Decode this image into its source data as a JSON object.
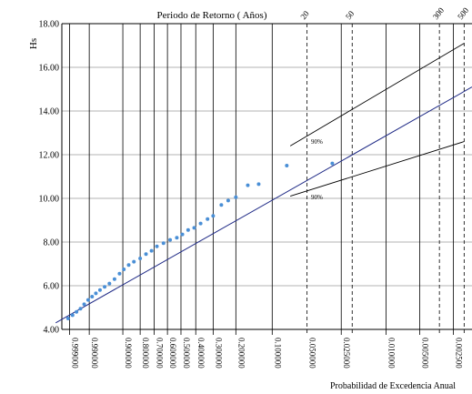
{
  "chart_data": {
    "type": "scatter",
    "title": "Periodo de Retorno ( Años)",
    "xlabel": "Probabilidad de Excedencia Anual",
    "ylabel": "Hs",
    "ylim": [
      4.0,
      18.0
    ],
    "y_ticks": [
      "4.00",
      "6.00",
      "8.00",
      "10.00",
      "12.00",
      "14.00",
      "16.00",
      "18.00"
    ],
    "x_ticks": [
      {
        "p": 0.999,
        "label": "0.999000",
        "dashed": false
      },
      {
        "p": 0.99,
        "label": "0.990000",
        "dashed": false
      },
      {
        "p": 0.9,
        "label": "0.900000",
        "dashed": false
      },
      {
        "p": 0.8,
        "label": "0.800000",
        "dashed": false
      },
      {
        "p": 0.7,
        "label": "0.700000",
        "dashed": false
      },
      {
        "p": 0.6,
        "label": "0.600000",
        "dashed": false
      },
      {
        "p": 0.5,
        "label": "0.500000",
        "dashed": false
      },
      {
        "p": 0.4,
        "label": "0.400000",
        "dashed": false
      },
      {
        "p": 0.3,
        "label": "0.300000",
        "dashed": false
      },
      {
        "p": 0.2,
        "label": "0.200000",
        "dashed": false
      },
      {
        "p": 0.1,
        "label": "0.100000",
        "dashed": false
      },
      {
        "p": 0.05,
        "label": "0.050000",
        "dashed": true
      },
      {
        "p": 0.025,
        "label": "0.025000",
        "dashed": false
      },
      {
        "p": 0.02,
        "label": "",
        "dashed": true
      },
      {
        "p": 0.01,
        "label": "0.010000",
        "dashed": false
      },
      {
        "p": 0.005,
        "label": "0.005000",
        "dashed": false
      },
      {
        "p": 0.00333,
        "label": "",
        "dashed": true
      },
      {
        "p": 0.0025,
        "label": "0.002500",
        "dashed": false
      },
      {
        "p": 0.002,
        "label": "",
        "dashed": true
      }
    ],
    "return_periods": [
      {
        "p": 0.05,
        "label": "20"
      },
      {
        "p": 0.02,
        "label": "50"
      },
      {
        "p": 0.00333,
        "label": "300"
      },
      {
        "p": 0.002,
        "label": "500"
      }
    ],
    "fit_line": {
      "from": {
        "p": 0.9999,
        "hs": 4.3
      },
      "to": {
        "p": 0.0017,
        "hs": 15.1
      }
    },
    "ci_upper": {
      "label": "90%",
      "from": {
        "p": 0.07,
        "hs": 12.4
      },
      "to": {
        "p": 0.002,
        "hs": 17.1
      }
    },
    "ci_lower": {
      "label": "90%",
      "from": {
        "p": 0.07,
        "hs": 10.1
      },
      "to": {
        "p": 0.002,
        "hs": 12.6
      }
    },
    "points": [
      {
        "p": 0.9992,
        "hs": 4.5
      },
      {
        "p": 0.9985,
        "hs": 4.65
      },
      {
        "p": 0.9975,
        "hs": 4.8
      },
      {
        "p": 0.996,
        "hs": 4.95
      },
      {
        "p": 0.994,
        "hs": 5.15
      },
      {
        "p": 0.991,
        "hs": 5.35
      },
      {
        "p": 0.987,
        "hs": 5.5
      },
      {
        "p": 0.982,
        "hs": 5.65
      },
      {
        "p": 0.975,
        "hs": 5.8
      },
      {
        "p": 0.965,
        "hs": 5.95
      },
      {
        "p": 0.952,
        "hs": 6.1
      },
      {
        "p": 0.935,
        "hs": 6.3
      },
      {
        "p": 0.915,
        "hs": 6.55
      },
      {
        "p": 0.895,
        "hs": 6.75
      },
      {
        "p": 0.87,
        "hs": 6.95
      },
      {
        "p": 0.84,
        "hs": 7.1
      },
      {
        "p": 0.8,
        "hs": 7.25
      },
      {
        "p": 0.76,
        "hs": 7.45
      },
      {
        "p": 0.72,
        "hs": 7.6
      },
      {
        "p": 0.68,
        "hs": 7.8
      },
      {
        "p": 0.63,
        "hs": 7.95
      },
      {
        "p": 0.58,
        "hs": 8.1
      },
      {
        "p": 0.53,
        "hs": 8.2
      },
      {
        "p": 0.49,
        "hs": 8.35
      },
      {
        "p": 0.45,
        "hs": 8.55
      },
      {
        "p": 0.41,
        "hs": 8.65
      },
      {
        "p": 0.37,
        "hs": 8.85
      },
      {
        "p": 0.33,
        "hs": 9.05
      },
      {
        "p": 0.3,
        "hs": 9.2
      },
      {
        "p": 0.26,
        "hs": 9.7
      },
      {
        "p": 0.23,
        "hs": 9.9
      },
      {
        "p": 0.2,
        "hs": 10.05
      },
      {
        "p": 0.16,
        "hs": 10.6
      },
      {
        "p": 0.13,
        "hs": 10.65
      },
      {
        "p": 0.075,
        "hs": 11.5
      },
      {
        "p": 0.03,
        "hs": 11.6
      }
    ],
    "colors": {
      "points": "#4a8fd6",
      "fit": "#1f2a86",
      "grid": "#000000",
      "ci": "#000000"
    }
  }
}
